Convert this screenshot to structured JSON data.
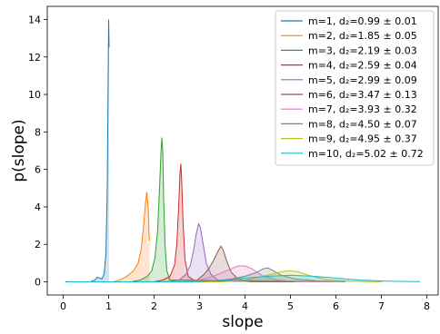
{
  "chart_data": {
    "type": "area",
    "title": "",
    "xlabel": "slope",
    "ylabel": "p(slope)",
    "xlim": [
      -0.35,
      8.25
    ],
    "ylim": [
      -0.7,
      14.7
    ],
    "xticks": [
      0,
      1,
      2,
      3,
      4,
      5,
      6,
      7,
      8
    ],
    "yticks": [
      0,
      2,
      4,
      6,
      8,
      10,
      12,
      14
    ],
    "grid": false,
    "legend_position": "top-right",
    "series": [
      {
        "name": "m=1, d₂=0.99 ± 0.01",
        "color": "#1f77b4",
        "points": [
          [
            0.05,
            0
          ],
          [
            0.6,
            0
          ],
          [
            0.7,
            0.1
          ],
          [
            0.75,
            0.25
          ],
          [
            0.8,
            0.2
          ],
          [
            0.85,
            0.15
          ],
          [
            0.9,
            0.4
          ],
          [
            0.94,
            1.5
          ],
          [
            0.97,
            5
          ],
          [
            0.99,
            11
          ],
          [
            1.0,
            14
          ],
          [
            1.01,
            12.5
          ]
        ]
      },
      {
        "name": "m=2, d₂=1.85 ± 0.05",
        "color": "#ff7f0e",
        "points": [
          [
            0.1,
            0
          ],
          [
            1.1,
            0
          ],
          [
            1.25,
            0.1
          ],
          [
            1.4,
            0.3
          ],
          [
            1.55,
            0.6
          ],
          [
            1.65,
            1.0
          ],
          [
            1.72,
            1.8
          ],
          [
            1.77,
            3.0
          ],
          [
            1.81,
            4.2
          ],
          [
            1.84,
            4.8
          ],
          [
            1.87,
            4.0
          ],
          [
            1.89,
            2.5
          ],
          [
            1.9,
            2.2
          ]
        ]
      },
      {
        "name": "m=3, d₂=2.19 ± 0.03",
        "color": "#2ca02c",
        "points": [
          [
            0.1,
            0
          ],
          [
            1.5,
            0
          ],
          [
            1.7,
            0.1
          ],
          [
            1.85,
            0.3
          ],
          [
            1.95,
            0.6
          ],
          [
            2.02,
            1.3
          ],
          [
            2.08,
            2.8
          ],
          [
            2.12,
            5.0
          ],
          [
            2.15,
            6.8
          ],
          [
            2.17,
            7.7
          ],
          [
            2.19,
            7.0
          ],
          [
            2.21,
            4.5
          ],
          [
            2.24,
            2.0
          ],
          [
            2.28,
            0.6
          ],
          [
            2.35,
            0.1
          ],
          [
            6.0,
            0
          ]
        ]
      },
      {
        "name": "m=4, d₂=2.59 ± 0.04",
        "color": "#d62728",
        "points": [
          [
            0.1,
            0
          ],
          [
            2.0,
            0
          ],
          [
            2.2,
            0.1
          ],
          [
            2.35,
            0.3
          ],
          [
            2.45,
            0.9
          ],
          [
            2.5,
            2.0
          ],
          [
            2.54,
            4.0
          ],
          [
            2.57,
            5.8
          ],
          [
            2.59,
            6.3
          ],
          [
            2.61,
            5.2
          ],
          [
            2.64,
            3.0
          ],
          [
            2.68,
            1.2
          ],
          [
            2.75,
            0.3
          ],
          [
            2.9,
            0.05
          ],
          [
            6.0,
            0
          ]
        ]
      },
      {
        "name": "m=5, d₂=2.99 ± 0.09",
        "color": "#9467bd",
        "points": [
          [
            0.1,
            0
          ],
          [
            2.3,
            0
          ],
          [
            2.55,
            0.1
          ],
          [
            2.7,
            0.4
          ],
          [
            2.8,
            0.9
          ],
          [
            2.87,
            1.7
          ],
          [
            2.93,
            2.6
          ],
          [
            2.98,
            3.1
          ],
          [
            3.02,
            2.9
          ],
          [
            3.08,
            2.0
          ],
          [
            3.15,
            1.0
          ],
          [
            3.25,
            0.4
          ],
          [
            3.4,
            0.1
          ],
          [
            6.0,
            0
          ]
        ]
      },
      {
        "name": "m=6, d₂=3.47 ± 0.13",
        "color": "#8c564b",
        "points": [
          [
            0.1,
            0
          ],
          [
            2.7,
            0
          ],
          [
            2.95,
            0.1
          ],
          [
            3.1,
            0.4
          ],
          [
            3.2,
            0.7
          ],
          [
            3.3,
            1.1
          ],
          [
            3.4,
            1.6
          ],
          [
            3.47,
            1.9
          ],
          [
            3.52,
            1.7
          ],
          [
            3.6,
            1.1
          ],
          [
            3.7,
            0.5
          ],
          [
            3.85,
            0.15
          ],
          [
            4.1,
            0
          ],
          [
            6.0,
            0
          ]
        ]
      },
      {
        "name": "m=7, d₂=3.93 ± 0.32",
        "color": "#e377c2",
        "points": [
          [
            0.1,
            0
          ],
          [
            2.7,
            0
          ],
          [
            3.0,
            0.1
          ],
          [
            3.3,
            0.3
          ],
          [
            3.6,
            0.6
          ],
          [
            3.85,
            0.85
          ],
          [
            4.0,
            0.85
          ],
          [
            4.15,
            0.7
          ],
          [
            4.4,
            0.3
          ],
          [
            4.7,
            0.1
          ],
          [
            5.2,
            0
          ],
          [
            6.0,
            0
          ]
        ]
      },
      {
        "name": "m=8, d₂=4.50 ± 0.07",
        "color": "#7f7f7f",
        "points": [
          [
            0.1,
            0
          ],
          [
            3.2,
            0
          ],
          [
            3.7,
            0.15
          ],
          [
            4.0,
            0.3
          ],
          [
            4.25,
            0.5
          ],
          [
            4.4,
            0.7
          ],
          [
            4.5,
            0.75
          ],
          [
            4.62,
            0.6
          ],
          [
            4.8,
            0.35
          ],
          [
            5.1,
            0.15
          ],
          [
            5.6,
            0.05
          ],
          [
            6.2,
            0
          ]
        ]
      },
      {
        "name": "m=9, d₂=4.95 ± 0.37",
        "color": "#bcbd22",
        "points": [
          [
            0.1,
            0
          ],
          [
            3.5,
            0
          ],
          [
            4.0,
            0.1
          ],
          [
            4.4,
            0.3
          ],
          [
            4.7,
            0.48
          ],
          [
            4.95,
            0.6
          ],
          [
            5.15,
            0.55
          ],
          [
            5.4,
            0.35
          ],
          [
            5.8,
            0.12
          ],
          [
            6.3,
            0.03
          ],
          [
            7.0,
            0
          ]
        ]
      },
      {
        "name": "m=10, d₂=5.02 ± 0.72",
        "color": "#17becf",
        "points": [
          [
            0.1,
            0
          ],
          [
            2.8,
            0
          ],
          [
            3.5,
            0.08
          ],
          [
            4.0,
            0.2
          ],
          [
            4.5,
            0.3
          ],
          [
            5.0,
            0.35
          ],
          [
            5.5,
            0.3
          ],
          [
            6.0,
            0.2
          ],
          [
            6.5,
            0.1
          ],
          [
            7.0,
            0.05
          ],
          [
            7.5,
            0.02
          ],
          [
            7.85,
            0.01
          ]
        ]
      }
    ]
  }
}
